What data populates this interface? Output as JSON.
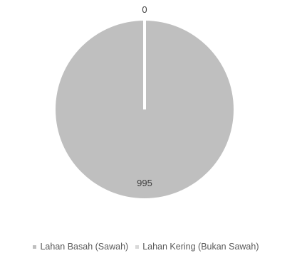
{
  "chart_data": {
    "type": "pie",
    "title": "",
    "categories": [
      "Lahan Basah (Sawah)",
      "Lahan Kering (Bukan Sawah)"
    ],
    "values": [
      0,
      995
    ],
    "data_labels": [
      "0",
      "995"
    ],
    "colors": [
      "#bfbfbf",
      "#bfbfbf"
    ],
    "slice_border_color": "#ffffff",
    "legend_colors": [
      "#bfbfbf",
      "#d9d9d9"
    ],
    "legend": {
      "position": "bottom",
      "items": [
        "Lahan Basah (Sawah)",
        "Lahan Kering (Bukan Sawah)"
      ]
    }
  }
}
